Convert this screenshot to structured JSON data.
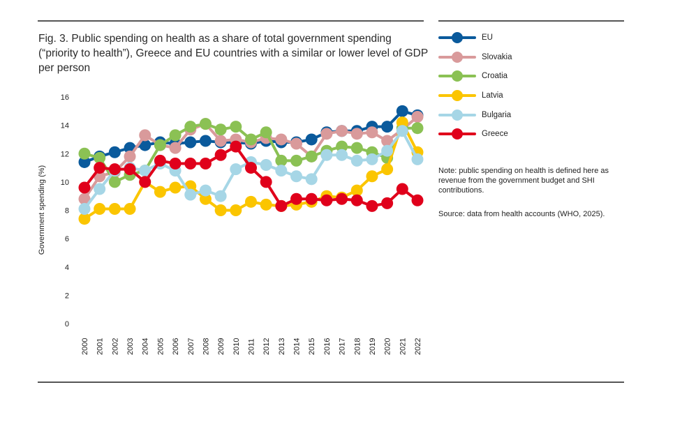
{
  "title": "Fig. 3. Public spending on health as a share of total government spending (“priority to health”), Greece and EU countries with a similar or lower level of GDP per person",
  "note": "Note: public spending on health is defined here as revenue from the government budget and SHI contributions.",
  "source": "Source: data from health accounts (WHO, 2025).",
  "chart_data": {
    "type": "line",
    "title": "Fig. 3. Public spending on health as a share of total government spending (“priority to health”), Greece and EU countries with a similar or lower level of GDP per person",
    "xlabel": "",
    "ylabel": "Government spending (%)",
    "ylim": [
      0,
      16
    ],
    "yticks": [
      "0",
      "2",
      "4",
      "6",
      "8",
      "10",
      "12",
      "14",
      "16"
    ],
    "grid": false,
    "legend_position": "right",
    "x": [
      "2000",
      "2001",
      "2002",
      "2003",
      "2004",
      "2005",
      "2006",
      "2007",
      "2008",
      "2009",
      "2010",
      "2011",
      "2012",
      "2013",
      "2014",
      "2015",
      "2016",
      "2017",
      "2018",
      "2019",
      "2020",
      "2021",
      "2022"
    ],
    "series": [
      {
        "name": "EU",
        "color": "#0a5a9c",
        "values": [
          11.4,
          11.8,
          12.1,
          12.4,
          12.6,
          12.8,
          12.7,
          12.8,
          12.9,
          12.8,
          12.8,
          12.7,
          12.9,
          12.8,
          12.8,
          13.0,
          13.5,
          13.6,
          13.6,
          13.9,
          13.9,
          15.0,
          14.7
        ]
      },
      {
        "name": "Slovakia",
        "color": "#d99a9b",
        "values": [
          8.8,
          10.4,
          10.7,
          11.8,
          13.3,
          12.6,
          12.4,
          13.7,
          14.1,
          12.9,
          13.0,
          12.8,
          13.1,
          13.0,
          12.7,
          11.8,
          13.4,
          13.6,
          13.4,
          13.5,
          12.9,
          13.7,
          14.6
        ]
      },
      {
        "name": "Croatia",
        "color": "#8bc154",
        "values": [
          12.0,
          11.7,
          10.0,
          10.5,
          10.8,
          12.6,
          13.3,
          13.9,
          14.1,
          13.7,
          13.9,
          13.0,
          13.5,
          11.5,
          11.5,
          11.8,
          12.2,
          12.5,
          12.4,
          12.1,
          11.7,
          13.8,
          13.8
        ]
      },
      {
        "name": "Latvia",
        "color": "#fbc500",
        "values": [
          7.4,
          8.1,
          8.1,
          8.1,
          10.0,
          9.3,
          9.6,
          9.7,
          8.8,
          8.0,
          8.0,
          8.6,
          8.4,
          8.3,
          8.4,
          8.6,
          9.0,
          8.9,
          9.4,
          10.4,
          10.9,
          14.2,
          12.1
        ]
      },
      {
        "name": "Bulgaria",
        "color": "#a6d6e6",
        "values": [
          8.1,
          9.5,
          10.8,
          11.0,
          10.8,
          11.3,
          10.8,
          9.1,
          9.4,
          9.0,
          10.9,
          11.4,
          11.2,
          10.8,
          10.4,
          10.2,
          11.9,
          11.9,
          11.5,
          11.6,
          12.2,
          13.6,
          11.6
        ]
      },
      {
        "name": "Greece",
        "color": "#e0001b",
        "values": [
          9.6,
          11.0,
          10.9,
          10.9,
          10.0,
          11.5,
          11.3,
          11.3,
          11.3,
          11.9,
          12.5,
          11.0,
          10.0,
          8.3,
          8.8,
          8.8,
          8.7,
          8.8,
          8.7,
          8.3,
          8.5,
          9.5,
          8.7
        ]
      }
    ]
  }
}
